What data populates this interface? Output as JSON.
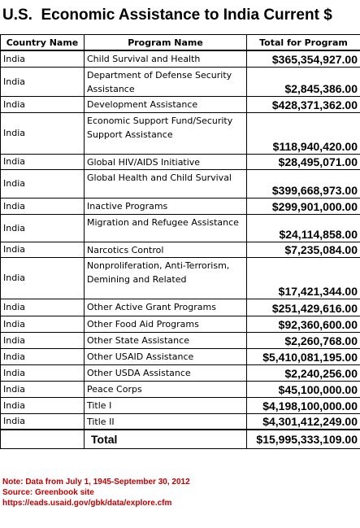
{
  "header": {
    "title": "U.S.  Economic Assistance to India Current $"
  },
  "table": {
    "columns": [
      "Country Name",
      "Program Name",
      "Total for Program"
    ],
    "rows": [
      [
        "India",
        "Child Survival and Health",
        "$365,354,927.00"
      ],
      [
        "India",
        "Department of Defense Security Assistance",
        "$2,845,386.00"
      ],
      [
        "India",
        "Development Assistance",
        "$428,371,362.00"
      ],
      [
        "India",
        "Economic Support Fund/Security Support Assistance",
        "$118,940,420.00"
      ],
      [
        "India",
        "Global HIV/AIDS Initiative",
        "$28,495,071.00"
      ],
      [
        "India",
        "Global Health and Child Survival",
        "$399,668,973.00"
      ],
      [
        "India",
        "Inactive Programs",
        "$299,901,000.00"
      ],
      [
        "India",
        "Migration and Refugee Assistance",
        "$24,114,858.00"
      ],
      [
        "India",
        "Narcotics Control",
        "$7,235,084.00"
      ],
      [
        "India",
        "Nonproliferation, Anti-Terrorism, Demining and Related",
        "$17,421,344.00"
      ],
      [
        "India",
        "Other Active Grant Programs",
        "$251,429,616.00"
      ],
      [
        "India",
        "Other Food Aid Programs",
        "$92,360,600.00"
      ],
      [
        "India",
        "Other State Assistance",
        "$2,260,768.00"
      ],
      [
        "India",
        "Other USAID Assistance",
        "$5,410,081,195.00"
      ],
      [
        "India",
        "Other USDA Assistance",
        "$2,240,256.00"
      ],
      [
        "India",
        "Peace Corps",
        "$45,100,000.00"
      ],
      [
        "India",
        "Title I",
        "$4,198,100,000.00"
      ],
      [
        "India",
        "Title II",
        "$4,301,412,249.00"
      ]
    ],
    "total_label": "Total",
    "total_value": "$15,995,333,109.00"
  },
  "notes": [
    "Note: Data from July 1, 1945-September 30, 2012",
    "Source: Greenbook site",
    "https://eads.usaid.gov/gbk/data/explore.cfm"
  ]
}
